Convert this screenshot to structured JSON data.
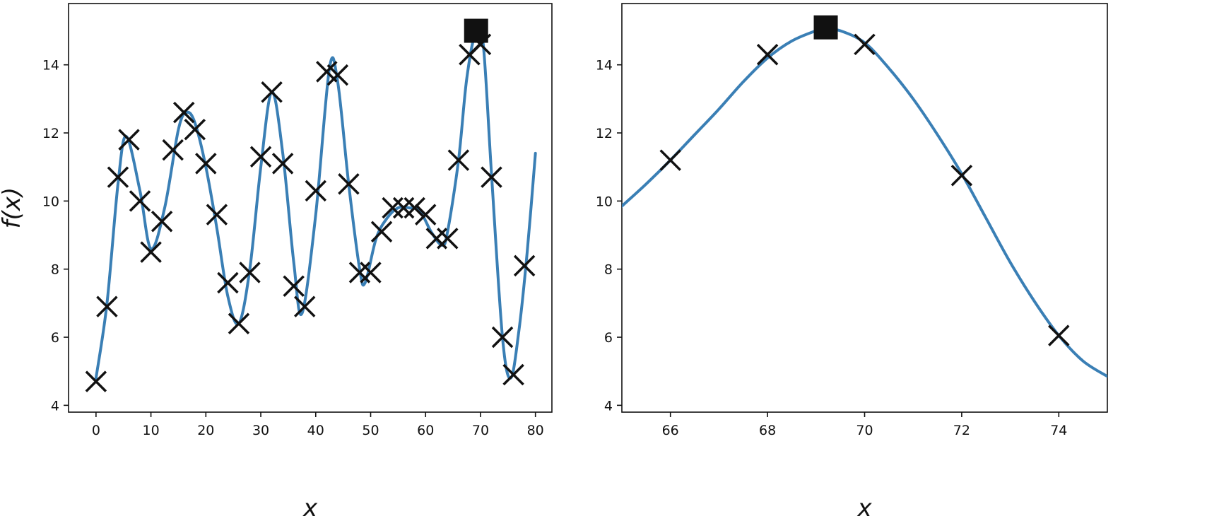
{
  "chart_data": [
    {
      "type": "line",
      "xlabel": "x",
      "ylabel": "f(x)",
      "xlim": [
        -5,
        83
      ],
      "ylim": [
        3.8,
        15.8
      ],
      "xticks": [
        "0",
        "10",
        "20",
        "30",
        "40",
        "50",
        "60",
        "70",
        "80"
      ],
      "yticks": [
        "4",
        "6",
        "8",
        "10",
        "12",
        "14"
      ],
      "grid": false,
      "colors": {
        "curve": "#3a7fb5",
        "markers": "#111111"
      },
      "series": [
        {
          "kind": "line",
          "x": [
            0,
            2,
            4,
            5.5,
            8,
            10,
            12.5,
            15,
            16.5,
            18,
            20,
            22,
            24,
            26,
            28,
            30,
            32,
            34,
            36,
            37.5,
            40,
            42.5,
            44,
            46,
            48,
            49,
            51,
            53,
            55,
            57,
            59,
            61,
            63,
            64,
            66,
            67.5,
            69.2,
            70.5,
            72,
            74,
            75.5,
            77,
            78.5,
            80
          ],
          "y": [
            4.8,
            7.0,
            10.5,
            11.9,
            10.3,
            8.6,
            9.8,
            12.1,
            12.6,
            12.3,
            11.0,
            9.2,
            7.2,
            6.4,
            8.0,
            11.0,
            13.2,
            11.4,
            8.2,
            6.7,
            9.6,
            13.9,
            13.5,
            10.5,
            8.0,
            7.6,
            8.9,
            9.5,
            9.8,
            9.8,
            9.7,
            9.1,
            8.7,
            9.1,
            11.2,
            13.6,
            15.0,
            14.6,
            10.8,
            6.0,
            4.8,
            6.2,
            8.5,
            11.4
          ]
        },
        {
          "kind": "scatter",
          "marker": "x",
          "x": [
            0,
            2,
            4,
            6,
            8,
            10,
            12,
            14,
            16,
            18,
            20,
            22,
            24,
            26,
            28,
            30,
            32,
            34,
            36,
            38,
            40,
            42,
            44,
            46,
            48,
            50,
            52,
            54,
            56,
            58,
            60,
            62,
            64,
            66,
            68,
            70,
            72,
            74,
            76,
            78
          ],
          "y": [
            4.7,
            6.9,
            10.7,
            11.8,
            10.0,
            8.5,
            9.4,
            11.5,
            12.6,
            12.1,
            11.1,
            9.6,
            7.6,
            6.4,
            7.9,
            11.3,
            13.2,
            11.1,
            7.5,
            6.9,
            10.3,
            13.8,
            13.7,
            10.5,
            7.9,
            7.9,
            9.1,
            9.8,
            9.8,
            9.8,
            9.6,
            8.9,
            8.9,
            11.2,
            14.3,
            14.6,
            10.7,
            6.0,
            4.9,
            8.1
          ]
        },
        {
          "kind": "scatter",
          "marker": "square",
          "x": [
            69.2
          ],
          "y": [
            15.0
          ]
        }
      ]
    },
    {
      "type": "line",
      "xlabel": "x",
      "ylabel": "",
      "xlim": [
        65,
        75
      ],
      "ylim": [
        3.8,
        15.8
      ],
      "xticks": [
        "66",
        "68",
        "70",
        "72",
        "74"
      ],
      "yticks": [
        "4",
        "6",
        "8",
        "10",
        "12",
        "14"
      ],
      "grid": false,
      "colors": {
        "curve": "#3a7fb5",
        "markers": "#111111"
      },
      "series": [
        {
          "kind": "line",
          "x": [
            65,
            65.5,
            66,
            66.5,
            67,
            67.5,
            68,
            68.5,
            69,
            69.2,
            69.5,
            70,
            70.5,
            71,
            71.5,
            72,
            72.5,
            73,
            73.5,
            74,
            74.5,
            75
          ],
          "y": [
            9.85,
            10.5,
            11.2,
            11.95,
            12.7,
            13.5,
            14.2,
            14.7,
            15.0,
            15.05,
            15.0,
            14.65,
            13.9,
            13.0,
            11.95,
            10.8,
            9.5,
            8.2,
            7.05,
            6.05,
            5.3,
            4.85
          ]
        },
        {
          "kind": "scatter",
          "marker": "x",
          "x": [
            66,
            68,
            70,
            72,
            74
          ],
          "y": [
            11.2,
            14.3,
            14.6,
            10.75,
            6.05
          ]
        },
        {
          "kind": "scatter",
          "marker": "square",
          "x": [
            69.2
          ],
          "y": [
            15.1
          ]
        }
      ]
    }
  ]
}
